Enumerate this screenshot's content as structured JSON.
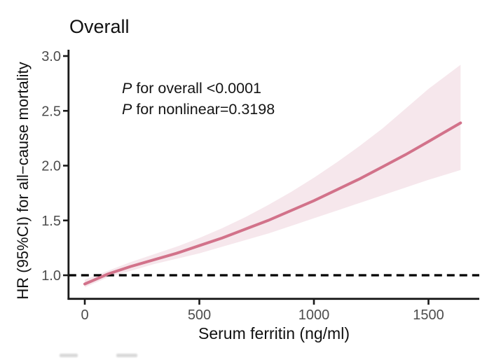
{
  "chart_data": {
    "type": "line",
    "title": "Overall",
    "xlabel": "Serum ferritin (ng/ml)",
    "ylabel": "HR (95%CI) for all−cause mortality",
    "annotations": [
      "P for overall <0.0001",
      "P for nonlinear=0.3198"
    ],
    "x_tick_labels": [
      "0",
      "500",
      "1000",
      "1500"
    ],
    "x_tick_values": [
      0,
      500,
      1000,
      1500
    ],
    "y_tick_labels": [
      "3.0",
      "2.5",
      "2.0",
      "1.5",
      "1.0"
    ],
    "y_tick_values": [
      3.0,
      2.5,
      2.0,
      1.5,
      1.0
    ],
    "xlim": [
      -70,
      1720
    ],
    "ylim": [
      0.78,
      3.05
    ],
    "grid": "off",
    "legend": "none",
    "reference_line_y": 1.0,
    "x": [
      0,
      100,
      200,
      300,
      400,
      500,
      600,
      700,
      800,
      900,
      1000,
      1100,
      1200,
      1300,
      1400,
      1500,
      1640
    ],
    "series": [
      {
        "name": "HR",
        "values": [
          0.92,
          1.01,
          1.08,
          1.14,
          1.2,
          1.27,
          1.34,
          1.42,
          1.5,
          1.59,
          1.68,
          1.78,
          1.88,
          1.99,
          2.1,
          2.22,
          2.39
        ]
      },
      {
        "name": "lower 95% CI",
        "values": [
          0.89,
          0.98,
          1.04,
          1.1,
          1.15,
          1.2,
          1.26,
          1.32,
          1.38,
          1.45,
          1.52,
          1.59,
          1.66,
          1.73,
          1.8,
          1.87,
          1.96
        ]
      },
      {
        "name": "upper 95% CI",
        "values": [
          0.96,
          1.04,
          1.12,
          1.19,
          1.26,
          1.34,
          1.43,
          1.53,
          1.64,
          1.76,
          1.89,
          2.03,
          2.18,
          2.34,
          2.52,
          2.7,
          2.92
        ]
      }
    ],
    "colors": {
      "curve": "#D2728A",
      "ribbon": "#F6E7EC",
      "reference_line": "#000000",
      "axis": "#1a1a1a",
      "tick_label": "#4d4d4d"
    }
  }
}
